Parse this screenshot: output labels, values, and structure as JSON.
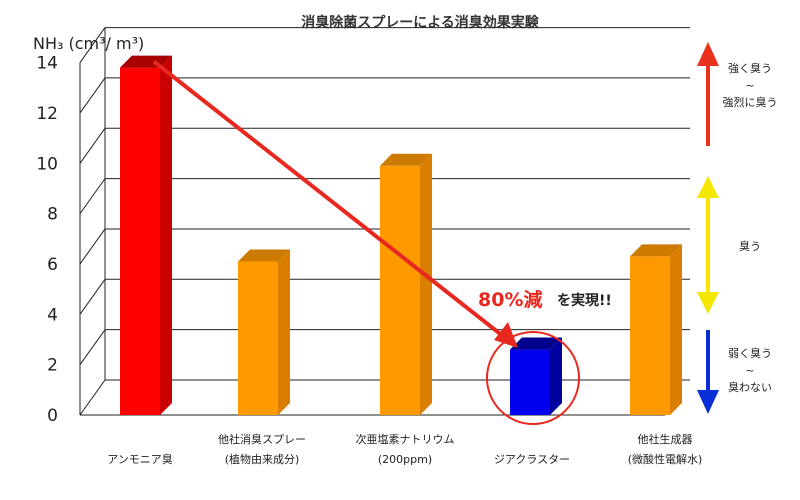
{
  "chart_data": {
    "type": "bar",
    "title": "消臭除菌スプレーによる消臭効果実験",
    "ylabel": "NH₃ (cm³/ m³)",
    "ylim": [
      0,
      14
    ],
    "yticks": [
      0,
      2,
      4,
      6,
      8,
      10,
      12,
      14
    ],
    "grid": true,
    "categories": [
      [
        "アンモニア臭"
      ],
      [
        "他社消臭スプレー",
        "(植物由来成分)"
      ],
      [
        "次亜塩素ナトリウム",
        "(200ppm)"
      ],
      [
        "ジアクラスター"
      ],
      [
        "他社生成器",
        "(微酸性電解水)"
      ]
    ],
    "values": [
      13.8,
      6.1,
      9.9,
      2.6,
      6.3
    ],
    "bar_colors": [
      "#ff0000",
      "#ff9900",
      "#ff9900",
      "#0000ee",
      "#ff9900"
    ],
    "bar_side_colors": [
      "#c80000",
      "#d97e00",
      "#d97e00",
      "#0000a0",
      "#d97e00"
    ],
    "bar_top_colors": [
      "#a80000",
      "#cc7a00",
      "#cc7a00",
      "#00008c",
      "#cc7a00"
    ],
    "annotation": {
      "highlight": "80%減",
      "rest": "を実現!!",
      "color": "#e8281e"
    },
    "odor_levels": [
      {
        "label": [
          "強く臭う",
          "~",
          "強烈に臭う"
        ],
        "color": "#e8321e",
        "range": [
          10.5,
          14.5
        ]
      },
      {
        "label": [
          "臭う"
        ],
        "color": "#f4e800",
        "range": [
          3.8,
          9.2
        ]
      },
      {
        "label": [
          "弱く臭う",
          "~",
          "臭わない"
        ],
        "color": "#0a2ed6",
        "range": [
          0,
          3.3
        ]
      }
    ]
  }
}
